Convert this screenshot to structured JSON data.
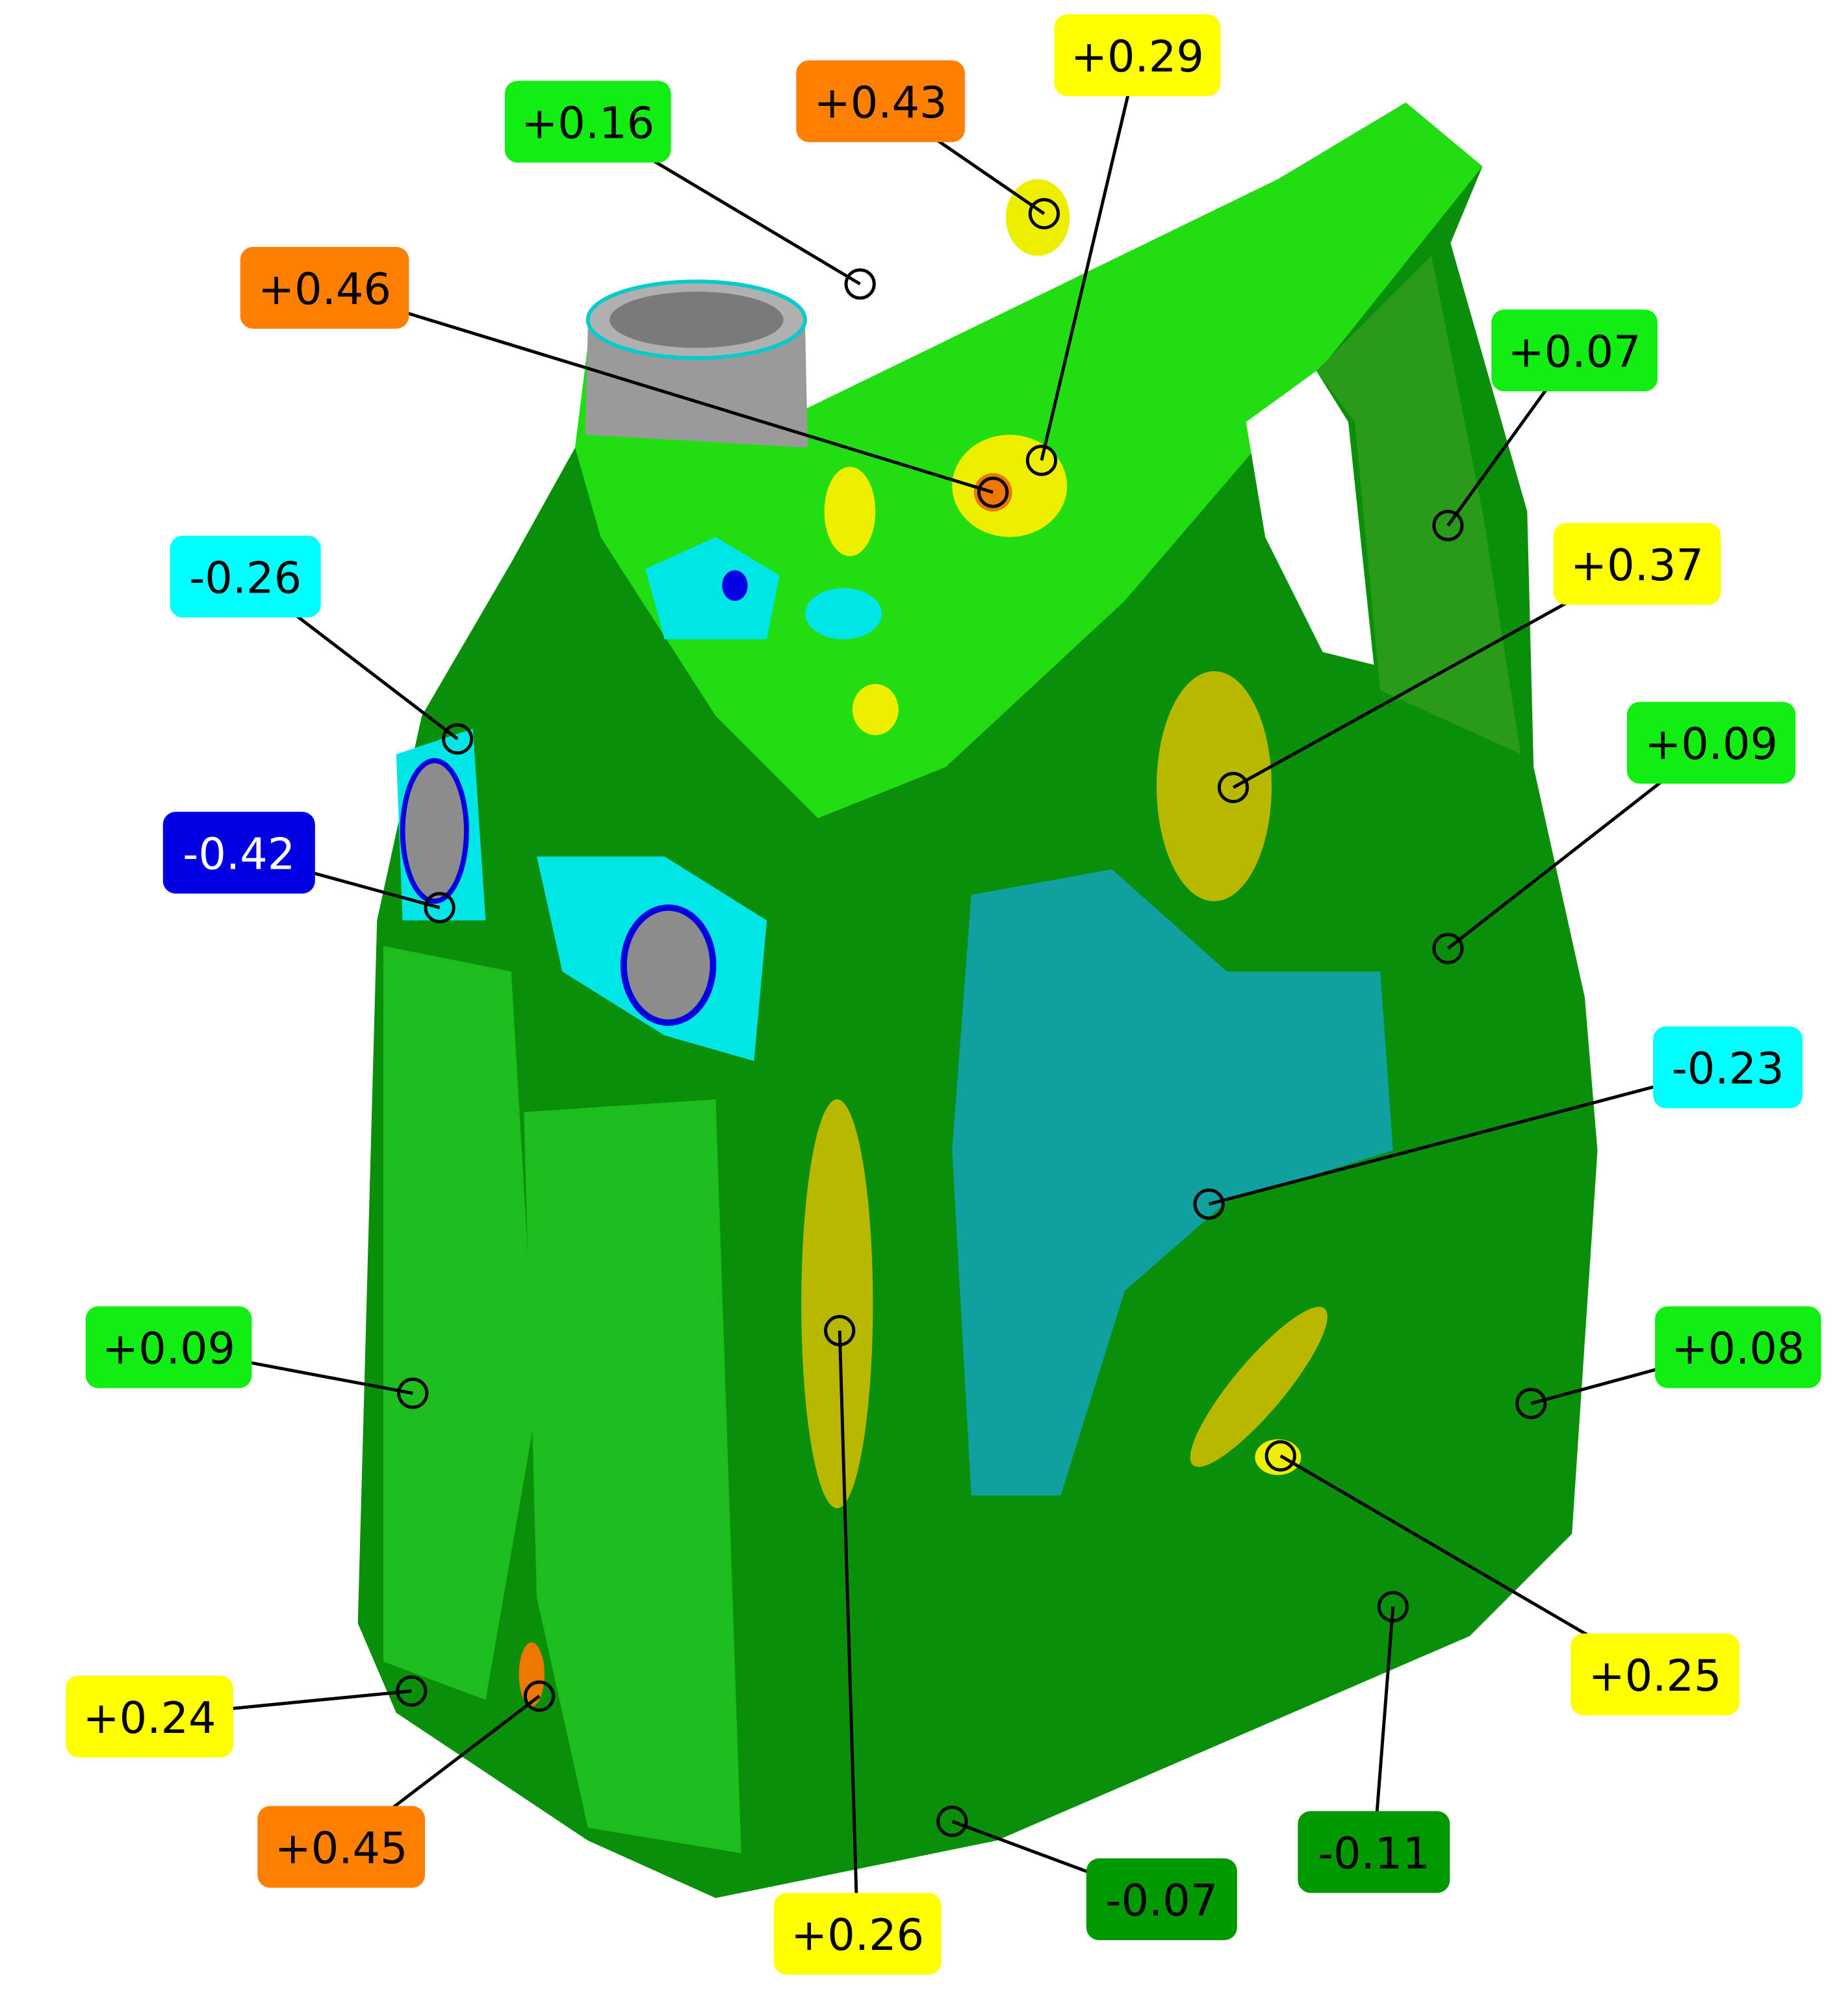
{
  "callouts": [
    {
      "label": "+0.16",
      "color": "#11ee11"
    },
    {
      "label": "+0.43",
      "color": "#ff8000"
    },
    {
      "label": "+0.29",
      "color": "#ffff00"
    },
    {
      "label": "+0.46",
      "color": "#ff8000"
    },
    {
      "label": "+0.07",
      "color": "#11ee11"
    },
    {
      "label": "-0.26",
      "color": "#00ffff"
    },
    {
      "label": "+0.37",
      "color": "#ffff00"
    },
    {
      "label": "+0.09",
      "color": "#11ee11"
    },
    {
      "label": "-0.42",
      "color": "#0000e0"
    },
    {
      "label": "-0.23",
      "color": "#00ffff"
    },
    {
      "label": "+0.09",
      "color": "#11ee11"
    },
    {
      "label": "+0.08",
      "color": "#11ee11"
    },
    {
      "label": "+0.25",
      "color": "#ffff00"
    },
    {
      "label": "+0.26",
      "color": "#ffff00"
    },
    {
      "label": "-0.11",
      "color": "#009900"
    },
    {
      "label": "-0.07",
      "color": "#009900"
    },
    {
      "label": "+0.24",
      "color": "#ffff00"
    },
    {
      "label": "+0.45",
      "color": "#ff8000"
    }
  ]
}
